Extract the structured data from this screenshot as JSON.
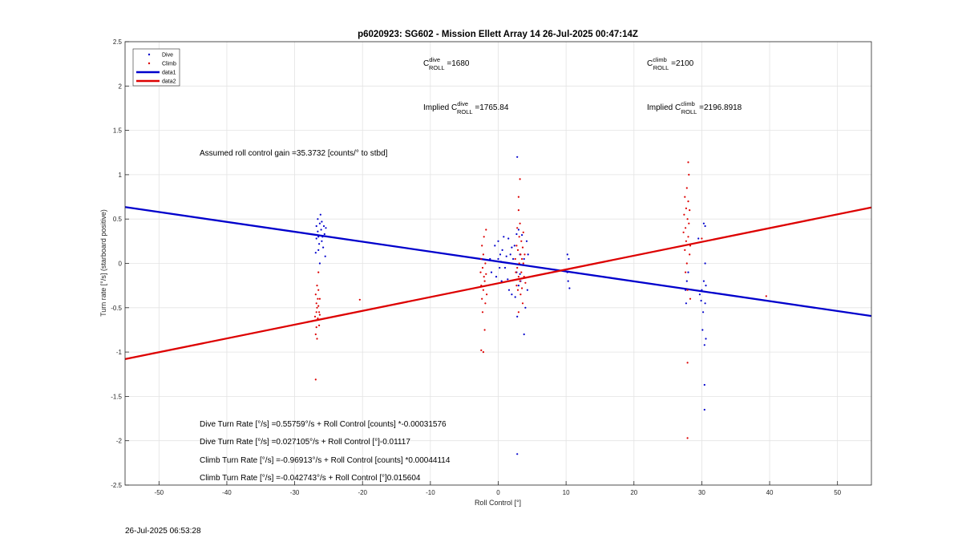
{
  "chart_data": {
    "type": "scatter",
    "title": "p6020923: SG602 - Mission Ellett Array 14 26-Jul-2025 00:47:14Z",
    "xlabel": "Roll Control [°]",
    "ylabel": "Turn rate [°/s] (starboard positive)",
    "xlim": [
      -55,
      55
    ],
    "ylim": [
      -2.5,
      2.5
    ],
    "xticks": [
      -50,
      -40,
      -30,
      -20,
      -10,
      0,
      10,
      20,
      30,
      40,
      50
    ],
    "yticks": [
      -2.5,
      -2,
      -1.5,
      -1,
      -0.5,
      0,
      0.5,
      1,
      1.5,
      2,
      2.5
    ],
    "grid": true,
    "legend_position": "top-left",
    "legend": [
      "Dive",
      "Climb",
      "data1",
      "data2"
    ],
    "colors": {
      "dive": "#0000cc",
      "climb": "#dd0000",
      "data1": "#0000cc",
      "data2": "#dd0000"
    },
    "series": [
      {
        "name": "Dive",
        "type": "scatter",
        "points": [
          [
            -26.8,
            0.42
          ],
          [
            -26.8,
            0.28
          ],
          [
            -26.6,
            0.5
          ],
          [
            -26.6,
            0.36
          ],
          [
            -26.5,
            0.3
          ],
          [
            -26.5,
            0.15
          ],
          [
            -26.4,
            0.22
          ],
          [
            -26.3,
            0.45
          ],
          [
            -26.3,
            0.0
          ],
          [
            -26.2,
            0.55
          ],
          [
            -26.1,
            0.38
          ],
          [
            -26.0,
            0.25
          ],
          [
            -25.9,
            0.3
          ],
          [
            -25.8,
            0.18
          ],
          [
            -25.7,
            0.42
          ],
          [
            -25.6,
            0.33
          ],
          [
            -25.5,
            0.08
          ],
          [
            -25.4,
            0.4
          ],
          [
            -26.9,
            0.12
          ],
          [
            -26.0,
            0.47
          ],
          [
            -1.2,
            0.05
          ],
          [
            -1.0,
            -0.1
          ],
          [
            -0.5,
            0.2
          ],
          [
            -0.3,
            -0.15
          ],
          [
            0.0,
            0.25
          ],
          [
            0.0,
            0.05
          ],
          [
            0.2,
            -0.05
          ],
          [
            0.3,
            0.1
          ],
          [
            0.4,
            0.02
          ],
          [
            0.5,
            -0.2
          ],
          [
            0.6,
            0.15
          ],
          [
            0.8,
            0.3
          ],
          [
            1.0,
            -0.05
          ],
          [
            1.2,
            0.08
          ],
          [
            1.5,
            0.28
          ],
          [
            1.6,
            -0.3
          ],
          [
            1.8,
            0.1
          ],
          [
            2.0,
            0.18
          ],
          [
            2.0,
            -0.35
          ],
          [
            2.2,
            0.05
          ],
          [
            2.4,
            0.2
          ],
          [
            2.5,
            -0.38
          ],
          [
            2.7,
            0.33
          ],
          [
            2.7,
            -0.1
          ],
          [
            2.8,
            1.2
          ],
          [
            2.8,
            -0.6
          ],
          [
            3.0,
            0.38
          ],
          [
            3.0,
            -0.25
          ],
          [
            3.2,
            0.1
          ],
          [
            3.3,
            -0.2
          ],
          [
            3.5,
            0.32
          ],
          [
            3.8,
            -0.8
          ],
          [
            3.8,
            0.05
          ],
          [
            4.0,
            -0.5
          ],
          [
            4.2,
            0.25
          ],
          [
            4.3,
            -0.3
          ],
          [
            4.4,
            0.1
          ],
          [
            2.8,
            -2.15
          ],
          [
            3.2,
            -0.12
          ],
          [
            1.4,
            -0.18
          ],
          [
            10.2,
            0.1
          ],
          [
            10.2,
            -0.1
          ],
          [
            10.3,
            -0.2
          ],
          [
            10.4,
            0.05
          ],
          [
            10.5,
            -0.28
          ],
          [
            27.6,
            -0.3
          ],
          [
            27.7,
            -0.45
          ],
          [
            27.8,
            -0.2
          ],
          [
            28.0,
            -0.1
          ],
          [
            29.5,
            0.28
          ],
          [
            29.7,
            -0.35
          ],
          [
            29.9,
            -0.42
          ],
          [
            30.0,
            -0.3
          ],
          [
            30.1,
            -0.75
          ],
          [
            30.2,
            -0.55
          ],
          [
            30.3,
            0.45
          ],
          [
            30.3,
            -0.2
          ],
          [
            30.4,
            -0.92
          ],
          [
            30.4,
            -1.37
          ],
          [
            30.4,
            -1.65
          ],
          [
            30.5,
            0.42
          ],
          [
            30.5,
            0.0
          ],
          [
            30.5,
            -0.45
          ],
          [
            30.6,
            -0.25
          ],
          [
            30.6,
            -0.85
          ]
        ]
      },
      {
        "name": "Climb",
        "type": "scatter",
        "points": [
          [
            -27.0,
            -0.6
          ],
          [
            -26.9,
            -0.35
          ],
          [
            -26.9,
            -0.8
          ],
          [
            -26.8,
            -0.45
          ],
          [
            -26.8,
            -0.55
          ],
          [
            -26.8,
            -0.72
          ],
          [
            -26.7,
            -0.25
          ],
          [
            -26.7,
            -0.5
          ],
          [
            -26.7,
            -0.85
          ],
          [
            -26.6,
            -0.4
          ],
          [
            -26.6,
            -0.62
          ],
          [
            -26.5,
            -0.3
          ],
          [
            -26.5,
            -0.48
          ],
          [
            -26.5,
            -0.1
          ],
          [
            -26.4,
            -0.55
          ],
          [
            -26.4,
            -0.7
          ],
          [
            -26.3,
            -0.4
          ],
          [
            -26.3,
            -0.58
          ],
          [
            -26.9,
            -1.31
          ],
          [
            -20.4,
            -0.41
          ],
          [
            -2.6,
            -0.1
          ],
          [
            -2.5,
            0.05
          ],
          [
            -2.5,
            -0.25
          ],
          [
            -2.4,
            -0.4
          ],
          [
            -2.4,
            0.2
          ],
          [
            -2.3,
            -0.05
          ],
          [
            -2.3,
            -0.55
          ],
          [
            -2.2,
            0.1
          ],
          [
            -2.2,
            -0.3
          ],
          [
            -2.1,
            -0.15
          ],
          [
            -2.1,
            0.3
          ],
          [
            -2.0,
            -0.2
          ],
          [
            -2.0,
            -0.75
          ],
          [
            -1.9,
            0.0
          ],
          [
            -1.9,
            -0.45
          ],
          [
            -1.8,
            0.38
          ],
          [
            -1.8,
            -0.12
          ],
          [
            -1.7,
            -0.35
          ],
          [
            -2.5,
            -0.98
          ],
          [
            -2.2,
            -1.0
          ],
          [
            2.5,
            0.05
          ],
          [
            2.6,
            -0.1
          ],
          [
            2.7,
            0.2
          ],
          [
            2.7,
            -0.25
          ],
          [
            2.8,
            0.4
          ],
          [
            2.8,
            -0.05
          ],
          [
            2.9,
            0.15
          ],
          [
            2.9,
            -0.3
          ],
          [
            3.0,
            0.6
          ],
          [
            3.0,
            -0.15
          ],
          [
            3.1,
            0.3
          ],
          [
            3.1,
            0.0
          ],
          [
            3.2,
            -0.2
          ],
          [
            3.2,
            0.45
          ],
          [
            3.3,
            0.1
          ],
          [
            3.3,
            -0.35
          ],
          [
            3.4,
            0.25
          ],
          [
            3.4,
            -0.1
          ],
          [
            3.5,
            0.05
          ],
          [
            3.5,
            -0.28
          ],
          [
            3.6,
            0.18
          ],
          [
            3.6,
            -0.45
          ],
          [
            3.7,
            0.35
          ],
          [
            3.7,
            0.0
          ],
          [
            3.8,
            -0.15
          ],
          [
            3.9,
            0.1
          ],
          [
            4.0,
            -0.22
          ],
          [
            3.0,
            0.75
          ],
          [
            3.2,
            0.95
          ],
          [
            3.0,
            -0.55
          ],
          [
            27.3,
            0.35
          ],
          [
            27.4,
            0.55
          ],
          [
            27.5,
            0.15
          ],
          [
            27.5,
            0.75
          ],
          [
            27.6,
            0.4
          ],
          [
            27.6,
            -0.1
          ],
          [
            27.7,
            0.62
          ],
          [
            27.7,
            0.25
          ],
          [
            27.8,
            0.85
          ],
          [
            27.8,
            0.0
          ],
          [
            27.9,
            0.5
          ],
          [
            27.9,
            -0.3
          ],
          [
            28.0,
            0.7
          ],
          [
            28.0,
            0.3
          ],
          [
            28.1,
            1.0
          ],
          [
            28.1,
            0.45
          ],
          [
            28.2,
            0.1
          ],
          [
            28.2,
            0.6
          ],
          [
            28.3,
            0.2
          ],
          [
            28.3,
            -0.4
          ],
          [
            28.0,
            1.14
          ],
          [
            27.9,
            -1.12
          ],
          [
            27.9,
            -1.97
          ],
          [
            30.0,
            0.28
          ],
          [
            39.5,
            -0.37
          ]
        ]
      },
      {
        "name": "data1",
        "type": "line",
        "x": [
          -55,
          55
        ],
        "y": [
          0.6354,
          -0.5933
        ]
      },
      {
        "name": "data2",
        "type": "line",
        "x": [
          -55,
          55
        ],
        "y": [
          -1.0798,
          0.6311
        ]
      }
    ],
    "annotations": {
      "c_dive": {
        "main": "C",
        "sup": "dive",
        "sub": "ROLL",
        "rest": " =1680"
      },
      "c_climb": {
        "main": "C",
        "sup": "climb",
        "sub": "ROLL",
        "rest": " =2100"
      },
      "implied_dive": {
        "prefix": "Implied C",
        "sup": "dive",
        "sub": "ROLL",
        "rest": " =1765.84"
      },
      "implied_climb": {
        "prefix": "Implied C",
        "sup": "climb",
        "sub": "ROLL",
        "rest": " =2196.8918"
      },
      "gain": "Assumed roll control gain =35.3732 [counts/° to stbd]",
      "fit1": "Dive Turn Rate [°/s] =0.55759°/s + Roll Control [counts] *-0.00031576",
      "fit2": "Dive Turn Rate [°/s] =0.027105°/s + Roll Control [°]-0.01117",
      "fit3": "Climb Turn Rate [°/s] =-0.96913°/s + Roll Control [counts] *0.00044114",
      "fit4": "Climb Turn Rate [°/s] =-0.042743°/s + Roll Control [°]0.015604"
    }
  },
  "timestamp": "26-Jul-2025 06:53:28"
}
